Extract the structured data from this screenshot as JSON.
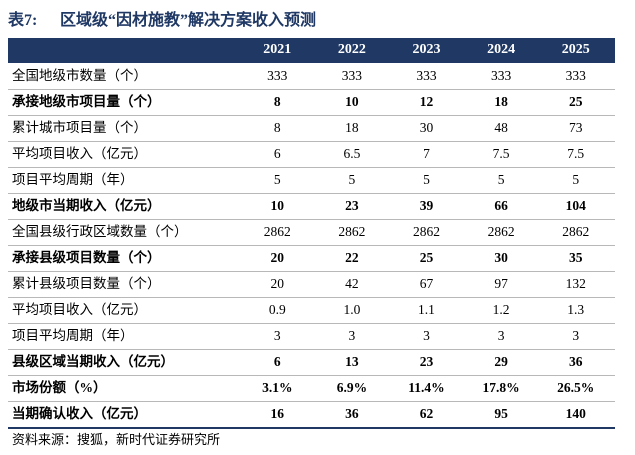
{
  "title": {
    "label": "表7:",
    "text": "区域级“因材施教”解决方案收入预测"
  },
  "table": {
    "columns": [
      "2021",
      "2022",
      "2023",
      "2024",
      "2025"
    ],
    "rows": [
      {
        "label": "全国地级市数量（个）",
        "bold": false,
        "cells": [
          "333",
          "333",
          "333",
          "333",
          "333"
        ]
      },
      {
        "label": "承接地级市项目量（个）",
        "bold": true,
        "cells": [
          "8",
          "10",
          "12",
          "18",
          "25"
        ]
      },
      {
        "label": "累计城市项目量（个）",
        "bold": false,
        "cells": [
          "8",
          "18",
          "30",
          "48",
          "73"
        ]
      },
      {
        "label": "平均项目收入（亿元）",
        "bold": false,
        "cells": [
          "6",
          "6.5",
          "7",
          "7.5",
          "7.5"
        ]
      },
      {
        "label": "项目平均周期（年）",
        "bold": false,
        "cells": [
          "5",
          "5",
          "5",
          "5",
          "5"
        ]
      },
      {
        "label": "地级市当期收入（亿元）",
        "bold": true,
        "cells": [
          "10",
          "23",
          "39",
          "66",
          "104"
        ]
      },
      {
        "label": "全国县级行政区域数量（个）",
        "bold": false,
        "cells": [
          "2862",
          "2862",
          "2862",
          "2862",
          "2862"
        ]
      },
      {
        "label": "承接县级项目数量（个）",
        "bold": true,
        "cells": [
          "20",
          "22",
          "25",
          "30",
          "35"
        ]
      },
      {
        "label": "累计县级项目数量（个）",
        "bold": false,
        "cells": [
          "20",
          "42",
          "67",
          "97",
          "132"
        ]
      },
      {
        "label": "平均项目收入（亿元）",
        "bold": false,
        "cells": [
          "0.9",
          "1.0",
          "1.1",
          "1.2",
          "1.3"
        ]
      },
      {
        "label": "项目平均周期（年）",
        "bold": false,
        "cells": [
          "3",
          "3",
          "3",
          "3",
          "3"
        ]
      },
      {
        "label": "县级区域当期收入（亿元）",
        "bold": true,
        "cells": [
          "6",
          "13",
          "23",
          "29",
          "36"
        ]
      },
      {
        "label": "市场份额（%）",
        "bold": true,
        "cells": [
          "3.1%",
          "6.9%",
          "11.4%",
          "17.8%",
          "26.5%"
        ]
      },
      {
        "label": "当期确认收入（亿元）",
        "bold": true,
        "cells": [
          "16",
          "36",
          "62",
          "95",
          "140"
        ]
      }
    ]
  },
  "source": "资料来源：搜狐，新时代证券研究所"
}
